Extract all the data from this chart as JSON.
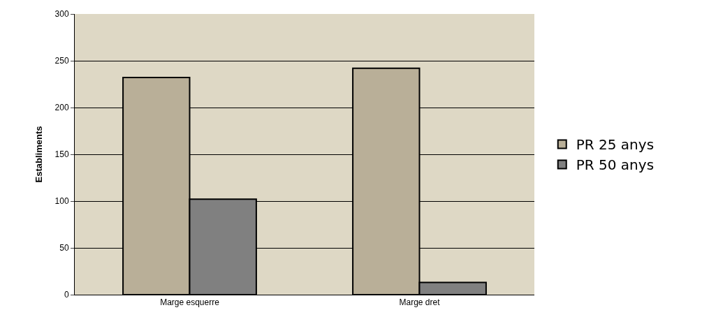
{
  "chart_data": {
    "type": "bar",
    "ylabel": "Establiments",
    "categories": [
      "Marge esquerre",
      "Marge dret"
    ],
    "series": [
      {
        "name": "PR 25 anys",
        "color": "#b9af98",
        "values": [
          232,
          242
        ]
      },
      {
        "name": "PR 50 anys",
        "color": "#808080",
        "values": [
          102,
          13
        ]
      }
    ],
    "ylim": [
      0,
      300
    ],
    "yticks": [
      0,
      50,
      100,
      150,
      200,
      250,
      300
    ],
    "grid": "y",
    "legend": "right"
  }
}
